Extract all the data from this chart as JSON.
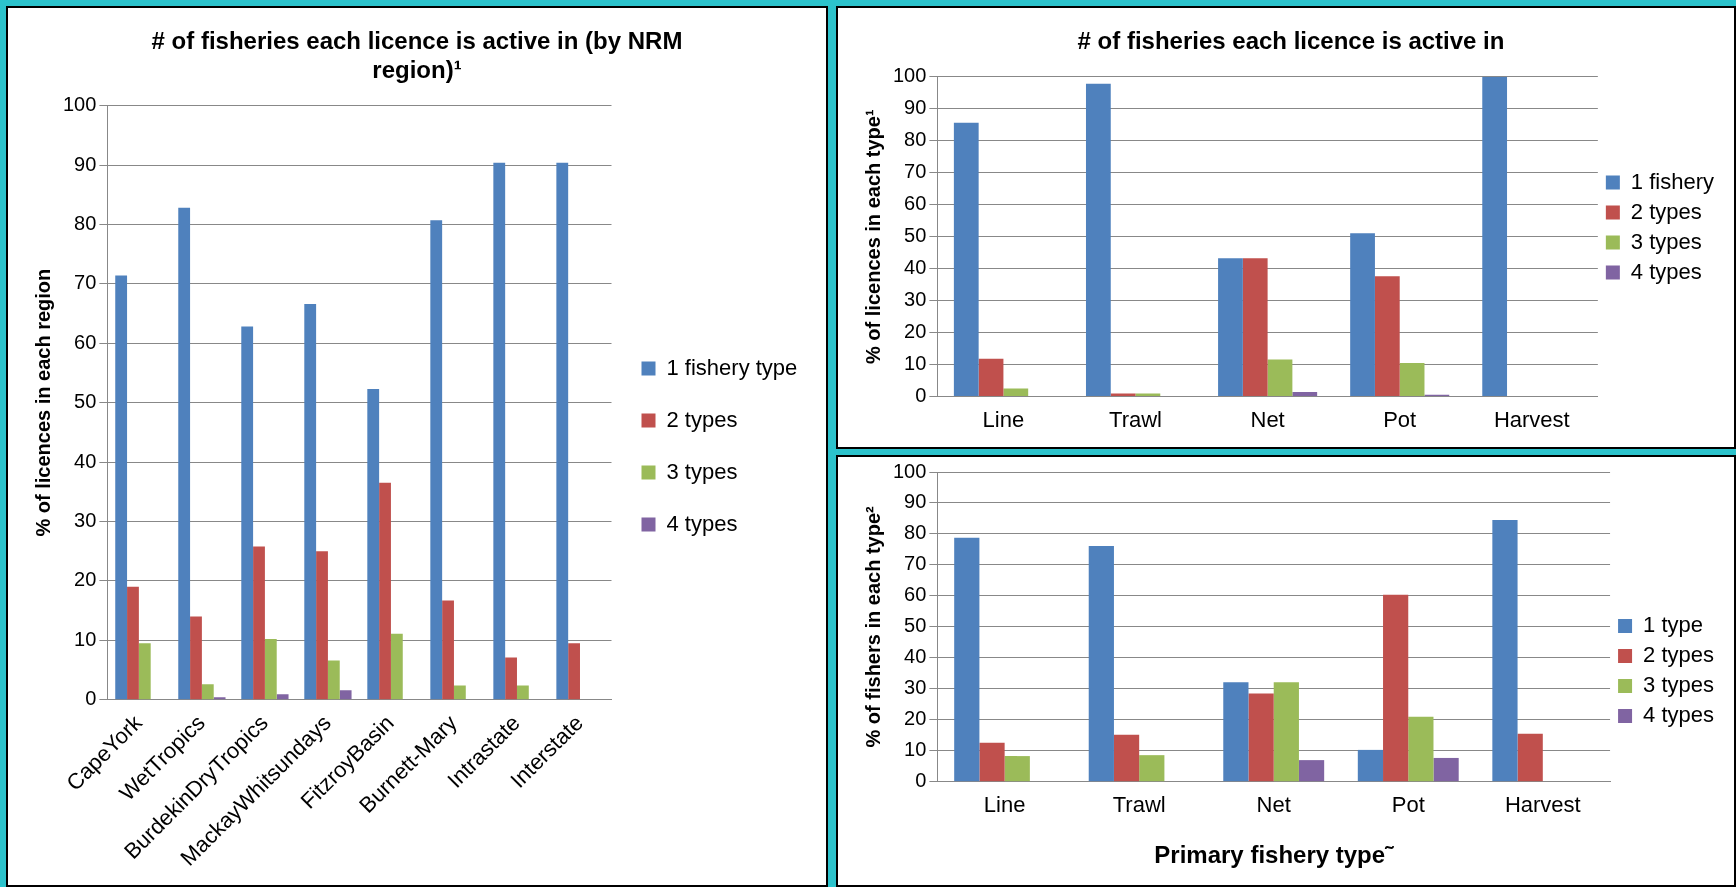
{
  "chart_data": [
    {
      "type": "bar",
      "title": "# of fisheries each licence is active in (by NRM region)¹",
      "ylabel": "% of licences in each region",
      "categories": [
        "CapeYork",
        "WetTropics",
        "BurdekinDryTropics",
        "MackayWhitsundays",
        "FitzroyBasin",
        "Burnett-Mary",
        "Intrastate",
        "Interstate"
      ],
      "series": [
        {
          "name": "1 fishery type",
          "color": "#4f81bd",
          "values": [
            71.4,
            82.8,
            62.8,
            66.6,
            52.3,
            80.7,
            90.4,
            90.4
          ]
        },
        {
          "name": "2 types",
          "color": "#c0504d",
          "values": [
            19,
            14,
            25.8,
            25,
            36.5,
            16.7,
            7.1,
            9.5
          ]
        },
        {
          "name": "3 types",
          "color": "#9bbb59",
          "values": [
            9.5,
            2.6,
            10.2,
            6.6,
            11.1,
            2.4,
            2.4,
            0
          ]
        },
        {
          "name": "4 types",
          "color": "#8064a2",
          "values": [
            0,
            0.4,
            0.9,
            1.6,
            0,
            0,
            0,
            0
          ]
        }
      ],
      "ylim": [
        0,
        100
      ],
      "yticks": [
        0,
        10,
        20,
        30,
        40,
        50,
        60,
        70,
        80,
        90,
        100
      ],
      "grid": "y",
      "legend": "right"
    },
    {
      "type": "bar",
      "title": "# of fisheries each licence is active in",
      "ylabel": "% of licences in each type¹",
      "categories": [
        "Line",
        "Trawl",
        "Net",
        "Pot",
        "Harvest"
      ],
      "series": [
        {
          "name": "1 fishery",
          "color": "#4f81bd",
          "values": [
            85.6,
            97.8,
            43.3,
            51.1,
            100
          ]
        },
        {
          "name": "2 types",
          "color": "#c0504d",
          "values": [
            11.8,
            1,
            43.3,
            37.6,
            0
          ]
        },
        {
          "name": "3 types",
          "color": "#9bbb59",
          "values": [
            2.5,
            1,
            11.6,
            10.5,
            0
          ]
        },
        {
          "name": "4 types",
          "color": "#8064a2",
          "values": [
            0,
            0,
            1.4,
            0.6,
            0
          ]
        }
      ],
      "ylim": [
        0,
        100
      ],
      "yticks": [
        0,
        10,
        20,
        30,
        40,
        50,
        60,
        70,
        80,
        90,
        100
      ],
      "grid": "y",
      "legend": "right"
    },
    {
      "type": "bar",
      "ylabel": "% of fishers in each type²",
      "xlabel": "Primary fishery type˜",
      "categories": [
        "Line",
        "Trawl",
        "Net",
        "Pot",
        "Harvest"
      ],
      "series": [
        {
          "name": "1 type",
          "color": "#4f81bd",
          "values": [
            78.8,
            76.1,
            32.1,
            10.3,
            84.5
          ]
        },
        {
          "name": "2 types",
          "color": "#c0504d",
          "values": [
            12.6,
            15.2,
            28.5,
            60.4,
            15.5
          ]
        },
        {
          "name": "3 types",
          "color": "#9bbb59",
          "values": [
            8.3,
            8.6,
            32.1,
            21,
            0
          ]
        },
        {
          "name": "4 types",
          "color": "#8064a2",
          "values": [
            0,
            0,
            7,
            7.7,
            0
          ]
        }
      ],
      "ylim": [
        0,
        100
      ],
      "yticks": [
        0,
        10,
        20,
        30,
        40,
        50,
        60,
        70,
        80,
        90,
        100
      ],
      "grid": "y",
      "legend": "right"
    }
  ]
}
